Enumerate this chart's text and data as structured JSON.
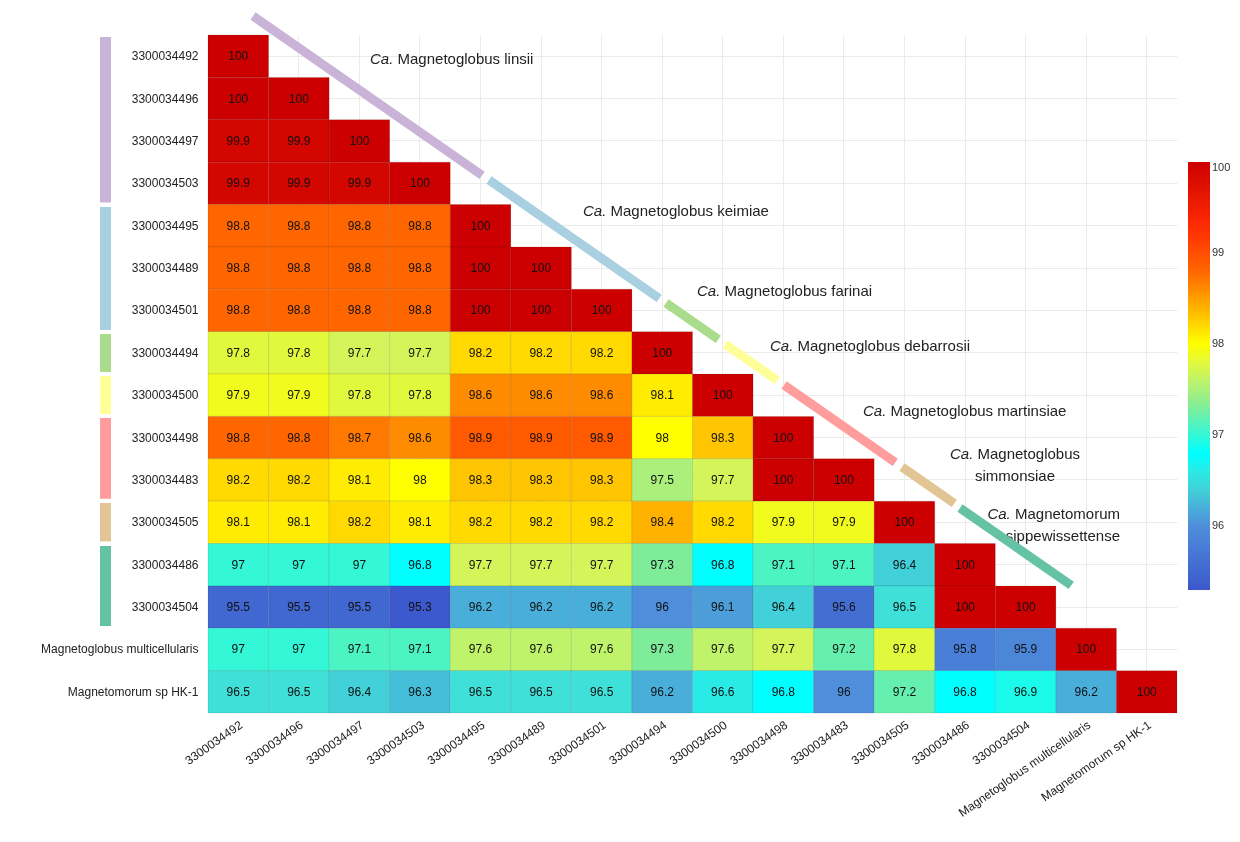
{
  "chart_data": {
    "type": "heatmap",
    "categories": [
      "3300034492",
      "3300034496",
      "3300034497",
      "3300034503",
      "3300034495",
      "3300034489",
      "3300034501",
      "3300034494",
      "3300034500",
      "3300034498",
      "3300034483",
      "3300034505",
      "3300034486",
      "3300034504",
      "Magnetoglobus multicellularis",
      "Magnetomorum sp HK-1"
    ],
    "y_categories": [
      "3300034492",
      "3300034496",
      "3300034497",
      "3300034503",
      "3300034495",
      "3300034489",
      "3300034501",
      "3300034494",
      "3300034500",
      "3300034498",
      "3300034483",
      "3300034505",
      "3300034486",
      "3300034504",
      "Magnetoglobus multicellularis",
      "Magnetomorum sp HK-1"
    ],
    "cells": [
      [
        100,
        null,
        null,
        null,
        null,
        null,
        null,
        null,
        null,
        null,
        null,
        null,
        null,
        null,
        null,
        null
      ],
      [
        100,
        100,
        null,
        null,
        null,
        null,
        null,
        null,
        null,
        null,
        null,
        null,
        null,
        null,
        null,
        null
      ],
      [
        99.9,
        99.9,
        100,
        null,
        null,
        null,
        null,
        null,
        null,
        null,
        null,
        null,
        null,
        null,
        null,
        null
      ],
      [
        99.9,
        99.9,
        99.9,
        100,
        null,
        null,
        null,
        null,
        null,
        null,
        null,
        null,
        null,
        null,
        null,
        null
      ],
      [
        98.8,
        98.8,
        98.8,
        98.8,
        100,
        null,
        null,
        null,
        null,
        null,
        null,
        null,
        null,
        null,
        null,
        null
      ],
      [
        98.8,
        98.8,
        98.8,
        98.8,
        100,
        100,
        null,
        null,
        null,
        null,
        null,
        null,
        null,
        null,
        null,
        null
      ],
      [
        98.8,
        98.8,
        98.8,
        98.8,
        100,
        100,
        100,
        null,
        null,
        null,
        null,
        null,
        null,
        null,
        null,
        null
      ],
      [
        97.8,
        97.8,
        97.7,
        97.7,
        98.2,
        98.2,
        98.2,
        100,
        null,
        null,
        null,
        null,
        null,
        null,
        null,
        null
      ],
      [
        97.9,
        97.9,
        97.8,
        97.8,
        98.6,
        98.6,
        98.6,
        98.1,
        100,
        null,
        null,
        null,
        null,
        null,
        null,
        null
      ],
      [
        98.8,
        98.8,
        98.7,
        98.6,
        98.9,
        98.9,
        98.9,
        98,
        98.3,
        100,
        null,
        null,
        null,
        null,
        null,
        null
      ],
      [
        98.2,
        98.2,
        98.1,
        98,
        98.3,
        98.3,
        98.3,
        97.5,
        97.7,
        100,
        100,
        null,
        null,
        null,
        null,
        null
      ],
      [
        98.1,
        98.1,
        98.2,
        98.1,
        98.2,
        98.2,
        98.2,
        98.4,
        98.2,
        97.9,
        97.9,
        100,
        null,
        null,
        null,
        null
      ],
      [
        97,
        97,
        97,
        96.8,
        97.7,
        97.7,
        97.7,
        97.3,
        96.8,
        97.1,
        97.1,
        96.4,
        100,
        null,
        null,
        null
      ],
      [
        95.5,
        95.5,
        95.5,
        95.3,
        96.2,
        96.2,
        96.2,
        96,
        96.1,
        96.4,
        95.6,
        96.5,
        100,
        100,
        null,
        null
      ],
      [
        97,
        97,
        97.1,
        97.1,
        97.6,
        97.6,
        97.6,
        97.3,
        97.6,
        97.7,
        97.2,
        97.8,
        95.8,
        95.9,
        100,
        null
      ],
      [
        96.5,
        96.5,
        96.4,
        96.3,
        96.5,
        96.5,
        96.5,
        96.2,
        96.6,
        96.8,
        96,
        97.2,
        96.8,
        96.9,
        96.2,
        100
      ]
    ],
    "clim": [
      95.3,
      100
    ],
    "cticks": [
      96,
      97,
      98,
      99,
      100
    ],
    "data_labels": true,
    "grid": true,
    "annotations": [
      "Ca. Magnetoglobus linsii",
      "Ca. Magnetoglobus keimiae",
      "Ca. Magnetoglobus farinai",
      "Ca. Magnetoglobus debarrosii",
      "Ca. Magnetoglobus martinsiae",
      "Ca. Magnetoglobus simmonsiae",
      "Ca. Magnetomorum sippewissettense"
    ]
  }
}
